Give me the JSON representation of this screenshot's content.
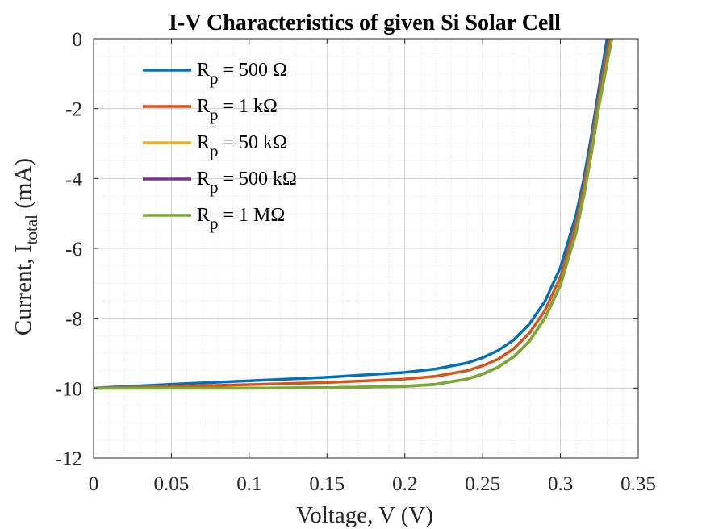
{
  "chart_data": {
    "type": "line",
    "title": "I-V Characteristics of given Si Solar Cell",
    "xlabel": "Voltage, V (V)",
    "ylabel": {
      "prefix": "Current, I",
      "subscript": "total",
      "suffix": " (mA)"
    },
    "xlim": [
      0,
      0.35
    ],
    "ylim": [
      -12,
      0
    ],
    "xticks": [
      0,
      0.05,
      0.1,
      0.15,
      0.2,
      0.25,
      0.3,
      0.35
    ],
    "xtick_labels": [
      "0",
      "0.05",
      "0.1",
      "0.15",
      "0.2",
      "0.25",
      "0.3",
      "0.35"
    ],
    "yticks": [
      0,
      -2,
      -4,
      -6,
      -8,
      -10,
      -12
    ],
    "ytick_labels": [
      "0",
      "-2",
      "-4",
      "-6",
      "-8",
      "-10",
      "-12"
    ],
    "grid": true,
    "minor_grid": true,
    "legend_position": "top-left",
    "series": [
      {
        "name": {
          "base": "R",
          "sub": "p",
          "rest": " = 500 Ω"
        },
        "color": "#0072BD",
        "x": [
          0,
          0.05,
          0.1,
          0.15,
          0.2,
          0.22,
          0.24,
          0.25,
          0.26,
          0.27,
          0.28,
          0.29,
          0.3,
          0.31,
          0.315,
          0.32,
          0.325,
          0.33
        ],
        "y": [
          -10.0,
          -9.89,
          -9.79,
          -9.69,
          -9.55,
          -9.45,
          -9.28,
          -9.13,
          -8.92,
          -8.62,
          -8.17,
          -7.52,
          -6.55,
          -5.05,
          -4.02,
          -2.75,
          -1.35,
          0.0
        ]
      },
      {
        "name": {
          "base": "R",
          "sub": "p",
          "rest": " = 1 kΩ"
        },
        "color": "#D95319",
        "x": [
          0,
          0.05,
          0.1,
          0.15,
          0.2,
          0.22,
          0.24,
          0.25,
          0.26,
          0.27,
          0.28,
          0.29,
          0.3,
          0.31,
          0.315,
          0.32,
          0.325,
          0.3315
        ],
        "y": [
          -10.0,
          -9.95,
          -9.9,
          -9.84,
          -9.74,
          -9.66,
          -9.5,
          -9.36,
          -9.17,
          -8.87,
          -8.43,
          -7.78,
          -6.82,
          -5.3,
          -4.25,
          -3.0,
          -1.6,
          0.0
        ]
      },
      {
        "name": {
          "base": "R",
          "sub": "p",
          "rest": " = 50 kΩ"
        },
        "color": "#EDB120",
        "x": [
          0,
          0.05,
          0.1,
          0.15,
          0.2,
          0.22,
          0.24,
          0.25,
          0.26,
          0.27,
          0.28,
          0.29,
          0.3,
          0.31,
          0.315,
          0.32,
          0.325,
          0.333
        ],
        "y": [
          -10.0,
          -10.0,
          -10.0,
          -9.99,
          -9.95,
          -9.89,
          -9.74,
          -9.6,
          -9.4,
          -9.1,
          -8.66,
          -8.0,
          -7.05,
          -5.55,
          -4.5,
          -3.25,
          -1.85,
          0.0
        ]
      },
      {
        "name": {
          "base": "R",
          "sub": "p",
          "rest": " = 500 kΩ"
        },
        "color": "#7E2F8E",
        "x": [
          0,
          0.05,
          0.1,
          0.15,
          0.2,
          0.22,
          0.24,
          0.25,
          0.26,
          0.27,
          0.28,
          0.29,
          0.3,
          0.31,
          0.315,
          0.32,
          0.325,
          0.333
        ],
        "y": [
          -10.0,
          -10.0,
          -10.0,
          -9.99,
          -9.95,
          -9.89,
          -9.74,
          -9.6,
          -9.4,
          -9.1,
          -8.66,
          -8.0,
          -7.05,
          -5.55,
          -4.5,
          -3.25,
          -1.85,
          0.0
        ]
      },
      {
        "name": {
          "base": "R",
          "sub": "p",
          "rest": " = 1 MΩ"
        },
        "color": "#77AC30",
        "x": [
          0,
          0.05,
          0.1,
          0.15,
          0.2,
          0.22,
          0.24,
          0.25,
          0.26,
          0.27,
          0.28,
          0.29,
          0.3,
          0.31,
          0.315,
          0.32,
          0.325,
          0.333
        ],
        "y": [
          -10.0,
          -10.0,
          -10.0,
          -9.99,
          -9.95,
          -9.89,
          -9.74,
          -9.6,
          -9.4,
          -9.1,
          -8.66,
          -8.0,
          -7.05,
          -5.55,
          -4.5,
          -3.25,
          -1.85,
          0.0
        ]
      }
    ]
  }
}
